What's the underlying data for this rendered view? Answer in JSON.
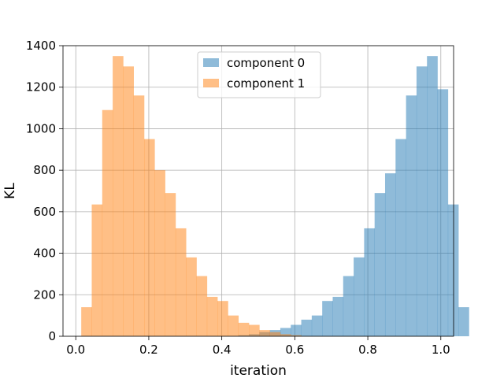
{
  "chart_data": {
    "type": "histogram",
    "title": "",
    "xlabel": "iteration",
    "ylabel": "KL",
    "xlim": [
      -0.035,
      1.035
    ],
    "ylim": [
      0,
      1400
    ],
    "xticks": [
      0.0,
      0.2,
      0.4,
      0.6,
      0.8,
      1.0
    ],
    "xtick_labels": [
      "0.0",
      "0.2",
      "0.4",
      "0.6",
      "0.8",
      "1.0"
    ],
    "yticks": [
      0,
      200,
      400,
      600,
      800,
      1000,
      1200,
      1400
    ],
    "ytick_labels": [
      "0",
      "200",
      "400",
      "600",
      "800",
      "1000",
      "1200",
      "1400"
    ],
    "grid": true,
    "legend_position": "upper center",
    "bin_start": 0.015,
    "bin_width": 0.0287,
    "series": [
      {
        "name": "component 0",
        "color": "#1f77b4",
        "opacity": 0.5,
        "values": [
          0,
          0,
          0,
          0,
          0,
          0,
          0,
          0,
          0,
          0,
          0,
          0,
          0,
          0,
          0,
          5,
          10,
          20,
          30,
          40,
          55,
          80,
          100,
          170,
          190,
          290,
          380,
          520,
          690,
          785,
          950,
          1160,
          1300,
          1350,
          1190,
          635,
          140
        ]
      },
      {
        "name": "component 1",
        "color": "#ff7f0e",
        "opacity": 0.5,
        "values": [
          140,
          635,
          1090,
          1350,
          1300,
          1160,
          950,
          800,
          690,
          520,
          380,
          290,
          190,
          170,
          100,
          65,
          55,
          30,
          20,
          10,
          5,
          0,
          0,
          0,
          0,
          0,
          0,
          0,
          0,
          0,
          0,
          0,
          0,
          0,
          0,
          0,
          0
        ]
      }
    ]
  }
}
